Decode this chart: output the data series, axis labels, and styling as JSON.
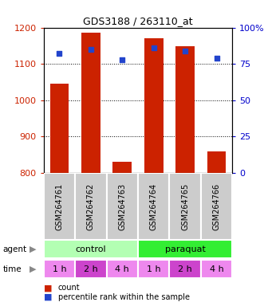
{
  "title": "GDS3188 / 263110_at",
  "samples": [
    "GSM264761",
    "GSM264762",
    "GSM264763",
    "GSM264764",
    "GSM264765",
    "GSM264766"
  ],
  "counts": [
    1045,
    1185,
    830,
    1170,
    1148,
    860
  ],
  "percentile_ranks": [
    82,
    85,
    78,
    86,
    84,
    79
  ],
  "ylim_left": [
    800,
    1200
  ],
  "ylim_right": [
    0,
    100
  ],
  "yticks_left": [
    800,
    900,
    1000,
    1100,
    1200
  ],
  "yticks_right": [
    0,
    25,
    50,
    75,
    100
  ],
  "bar_color": "#cc2200",
  "dot_color": "#2244cc",
  "agent_control_label": "control",
  "agent_paraquat_label": "paraquat",
  "agent_control_color": "#b3ffb3",
  "agent_paraquat_color": "#33ee33",
  "time_labels": [
    "1 h",
    "2 h",
    "4 h",
    "1 h",
    "2 h",
    "4 h"
  ],
  "time_colors": [
    "#ee88ee",
    "#cc44cc",
    "#ee88ee",
    "#ee88ee",
    "#cc44cc",
    "#ee88ee"
  ],
  "bg_color": "#cccccc",
  "bar_bottom": 800,
  "left_axis_color": "#cc2200",
  "right_axis_color": "#0000cc"
}
